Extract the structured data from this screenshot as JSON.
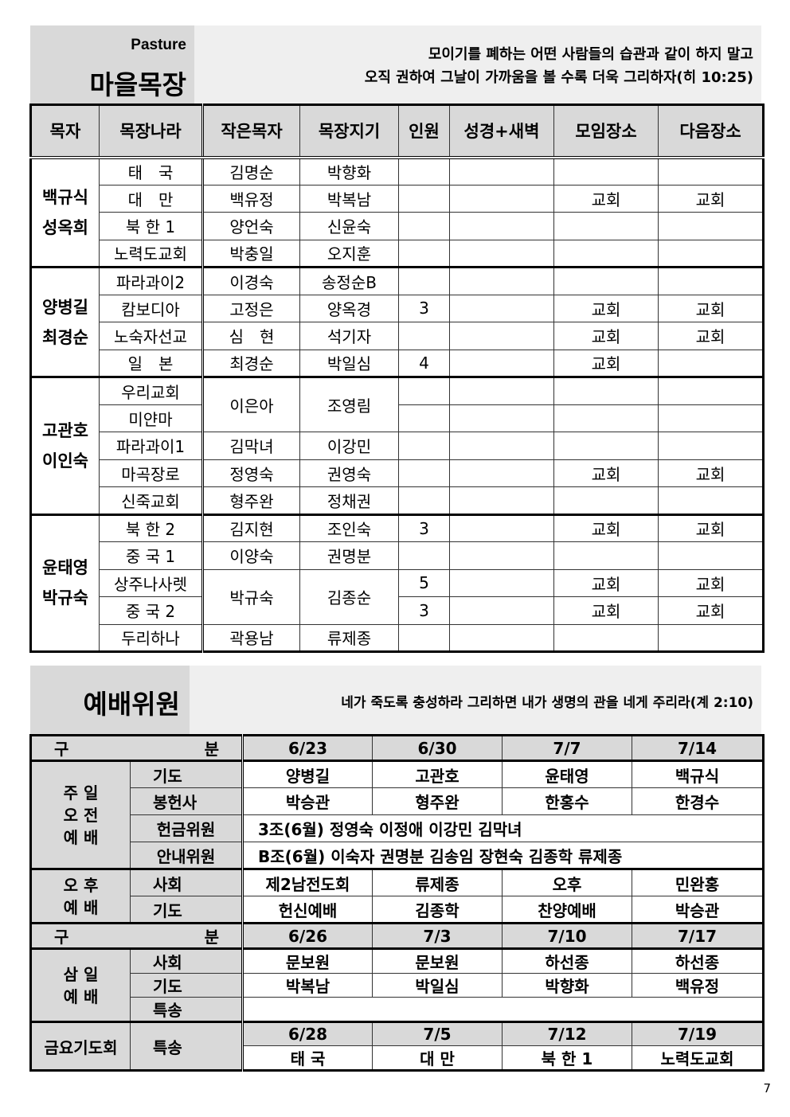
{
  "pasture": {
    "label_en": "Pasture",
    "label_ko": "마을목장",
    "verse_line1": "모이기를 폐하는 어떤 사람들의 습관과 같이 하지 말고",
    "verse_line2": "오직 권하여 그날이 가까움을 볼 수록 더욱 그리하자(히 10:25)",
    "columns": [
      "목자",
      "목장나라",
      "작은목자",
      "목장지기",
      "인원",
      "성경+새벽",
      "모임장소",
      "다음장소"
    ],
    "groups": [
      {
        "pastor": [
          "백규식",
          "성옥희"
        ],
        "rows": [
          {
            "nation": "태　국",
            "small": "김명순",
            "keeper": "박향화",
            "count": "",
            "bible": "",
            "place": "",
            "next": ""
          },
          {
            "nation": "대　만",
            "small": "백유정",
            "keeper": "박복남",
            "count": "",
            "bible": "",
            "place": "교회",
            "next": "교회"
          },
          {
            "nation": "북 한 1",
            "small": "양언숙",
            "keeper": "신윤숙",
            "count": "",
            "bible": "",
            "place": "",
            "next": ""
          },
          {
            "nation": "노력도교회",
            "small": "박충일",
            "keeper": "오지훈",
            "count": "",
            "bible": "",
            "place": "",
            "next": ""
          }
        ]
      },
      {
        "pastor": [
          "양병길",
          "최경순"
        ],
        "rows": [
          {
            "nation": "파라과이2",
            "small": "이경숙",
            "keeper": "송정순B",
            "count": "",
            "bible": "",
            "place": "",
            "next": ""
          },
          {
            "nation": "캄보디아",
            "small": "고정은",
            "keeper": "양옥경",
            "count": "3",
            "bible": "",
            "place": "교회",
            "next": "교회"
          },
          {
            "nation": "노숙자선교",
            "small": "심　현",
            "keeper": "석기자",
            "count": "",
            "bible": "",
            "place": "교회",
            "next": "교회"
          },
          {
            "nation": "일　본",
            "small": "최경순",
            "keeper": "박일심",
            "count": "4",
            "bible": "",
            "place": "교회",
            "next": ""
          }
        ]
      },
      {
        "pastor": [
          "고관호",
          "이인숙"
        ],
        "rows": [
          {
            "nation": "우리교회",
            "small": "이은아",
            "keeper": "조영림",
            "span": 2,
            "count": "",
            "bible": "",
            "place": "",
            "next": ""
          },
          {
            "nation": "미얀마",
            "count": "",
            "bible": "",
            "place": "",
            "next": ""
          },
          {
            "nation": "파라과이1",
            "small": "김막녀",
            "keeper": "이강민",
            "count": "",
            "bible": "",
            "place": "",
            "next": ""
          },
          {
            "nation": "마곡장로",
            "small": "정영숙",
            "keeper": "권영숙",
            "count": "",
            "bible": "",
            "place": "교회",
            "next": "교회"
          },
          {
            "nation": "신죽교회",
            "small": "형주완",
            "keeper": "정채권",
            "count": "",
            "bible": "",
            "place": "",
            "next": ""
          }
        ]
      },
      {
        "pastor": [
          "윤태영",
          "박규숙"
        ],
        "rows": [
          {
            "nation": "북 한 2",
            "small": "김지현",
            "keeper": "조인숙",
            "count": "3",
            "bible": "",
            "place": "교회",
            "next": "교회"
          },
          {
            "nation": "중 국 1",
            "small": "이양숙",
            "keeper": "권명분",
            "count": "",
            "bible": "",
            "place": "",
            "next": ""
          },
          {
            "nation": "상주나사렛",
            "small": "박규숙",
            "keeper": "김종순",
            "span": 2,
            "count": "5",
            "bible": "",
            "place": "교회",
            "next": "교회"
          },
          {
            "nation": "중 국 2",
            "count": "3",
            "bible": "",
            "place": "교회",
            "next": "교회"
          },
          {
            "nation": "두리하나",
            "small": "곽용남",
            "keeper": "류제종",
            "count": "",
            "bible": "",
            "place": "",
            "next": ""
          }
        ]
      }
    ]
  },
  "worship": {
    "label_ko": "예배위원",
    "verse": "네가 죽도록 충성하라 그리하면 내가 생명의 관을 네게 주리라(계 2:10)",
    "sunday": {
      "header": "구　분",
      "dates": [
        "6/23",
        "6/30",
        "7/7",
        "7/14"
      ],
      "am_label": "주 일\n오 전\n예 배",
      "prayer_label": "기도",
      "prayer": [
        "양병길",
        "고관호",
        "윤태영",
        "백규식"
      ],
      "offering_label": "봉헌사",
      "offering": [
        "박승관",
        "형주완",
        "한홍수",
        "한경수"
      ],
      "collect_label": "헌금위원",
      "collect": "3조(6월) 정영숙 이정애 이강민 김막녀",
      "usher_label": "안내위원",
      "usher": "B조(6월) 이숙자 권명분 김송임 장현숙 김종학 류제종",
      "pm_label": "오 후\n예 배",
      "lead_label": "사회",
      "lead": [
        "제2남전도회",
        "류제종",
        "오후",
        "민완홍"
      ],
      "pm_prayer_label": "기도",
      "pm_prayer": [
        "헌신예배",
        "김종학",
        "찬양예배",
        "박승관"
      ]
    },
    "wednesday": {
      "header": "구　분",
      "dates": [
        "6/26",
        "7/3",
        "7/10",
        "7/17"
      ],
      "label": "삼 일\n예 배",
      "lead_label": "사회",
      "lead": [
        "문보원",
        "문보원",
        "하선종",
        "하선종"
      ],
      "prayer_label": "기도",
      "prayer": [
        "박복남",
        "박일심",
        "박향화",
        "백유정"
      ],
      "song_label": "특송"
    },
    "friday": {
      "label": "금요기도회",
      "song_label": "특송",
      "dates": [
        "6/28",
        "7/5",
        "7/12",
        "7/19"
      ],
      "songs": [
        "태 국",
        "대 만",
        "북 한 1",
        "노력도교회"
      ]
    }
  },
  "page_number": "7"
}
